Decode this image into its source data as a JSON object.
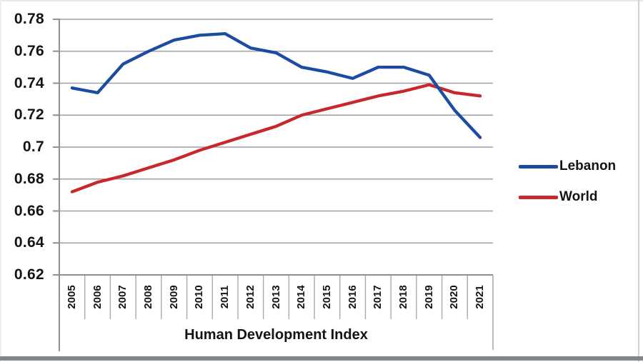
{
  "chart_data": {
    "type": "line",
    "title": "",
    "xlabel": "Human Development Index",
    "ylabel": "",
    "x": [
      2005,
      2006,
      2007,
      2008,
      2009,
      2010,
      2011,
      2012,
      2013,
      2014,
      2015,
      2016,
      2017,
      2018,
      2019,
      2020,
      2021
    ],
    "series": [
      {
        "name": "Lebanon",
        "color": "#1c4ba2",
        "values": [
          0.737,
          0.734,
          0.752,
          0.76,
          0.767,
          0.77,
          0.771,
          0.762,
          0.759,
          0.75,
          0.747,
          0.743,
          0.75,
          0.75,
          0.745,
          0.723,
          0.706
        ]
      },
      {
        "name": "World",
        "color": "#c8272b",
        "values": [
          0.672,
          0.678,
          0.682,
          0.687,
          0.692,
          0.698,
          0.703,
          0.708,
          0.713,
          0.72,
          0.724,
          0.728,
          0.732,
          0.735,
          0.739,
          0.734,
          0.732
        ]
      }
    ],
    "ylim": [
      0.62,
      0.78
    ],
    "ytick_step": 0.02,
    "yticks": [
      "0.78",
      "0.76",
      "0.74",
      "0.72",
      "0.7",
      "0.68",
      "0.66",
      "0.64",
      "0.62"
    ],
    "grid": true,
    "legend_position": "right-middle",
    "gridline_color": "#9ca1a5",
    "axis_color": "#8b9195",
    "cell_divider_color": "#a6abaf"
  },
  "legend": {
    "items": [
      {
        "label": "Lebanon",
        "color": "#1c4ba2"
      },
      {
        "label": "World",
        "color": "#c8272b"
      }
    ]
  }
}
